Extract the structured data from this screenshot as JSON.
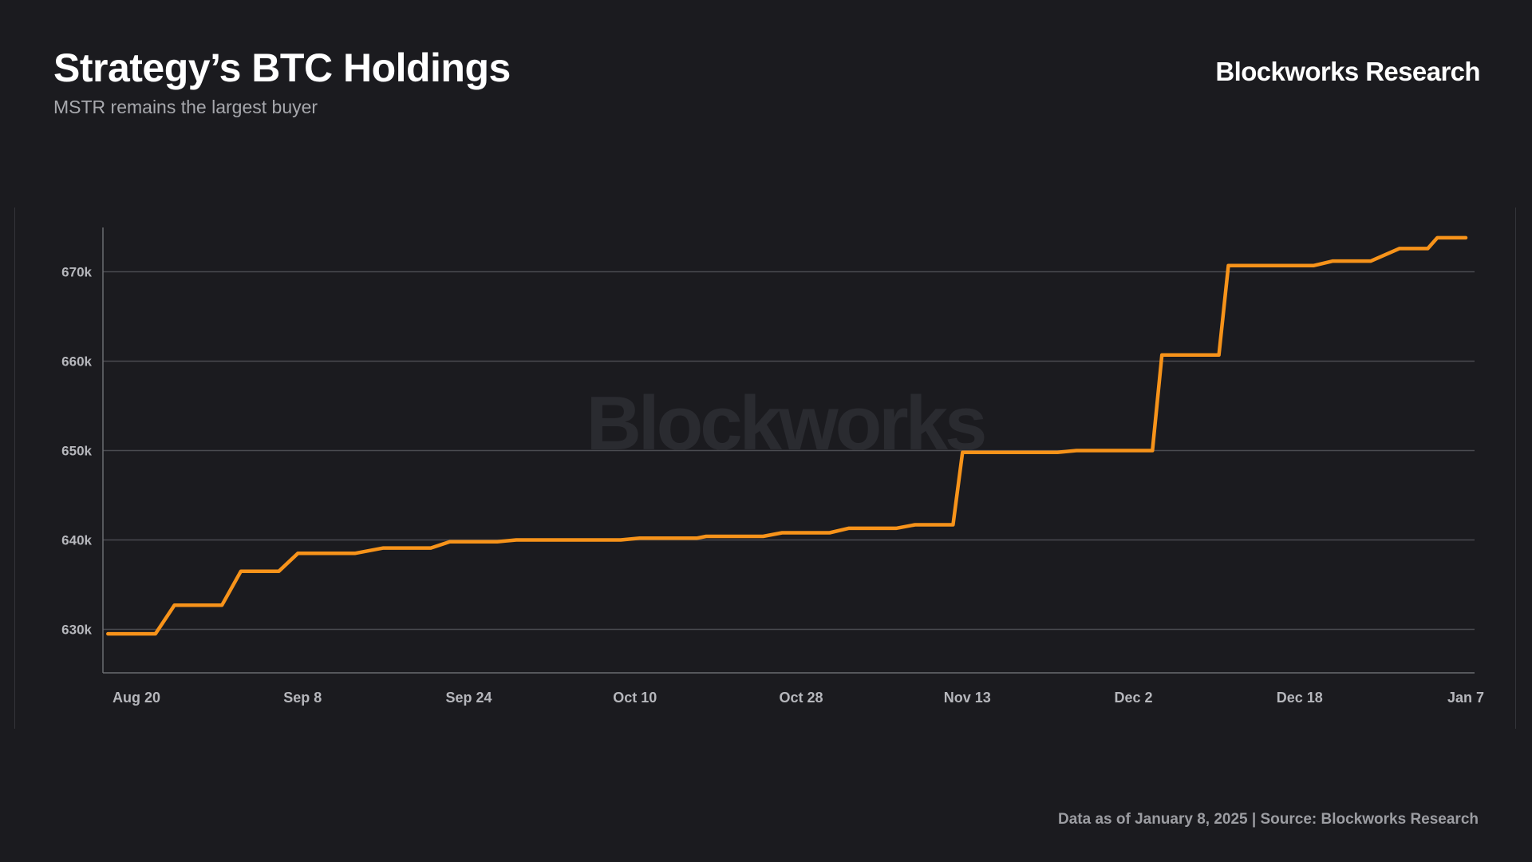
{
  "header": {
    "title": "Strategy’s BTC Holdings",
    "subtitle": "MSTR remains the largest buyer",
    "brand": "Blockworks Research"
  },
  "watermark": "Blockworks",
  "footer": {
    "source": "Data as of January 8, 2025 | Source: Blockworks Research"
  },
  "colors": {
    "background": "#1b1b1f",
    "line": "#f7931a",
    "grid": "#4a4b50",
    "tick_text": "#b6b7bc"
  },
  "chart_data": {
    "type": "line",
    "title": "Strategy’s BTC Holdings",
    "subtitle": "MSTR remains the largest buyer",
    "xlabel": "",
    "ylabel": "",
    "grid": true,
    "legend": "none",
    "x_ticks": [
      "Aug 20",
      "Sep 8",
      "Sep 24",
      "Oct 10",
      "Oct 28",
      "Nov 13",
      "Dec 2",
      "Dec 18",
      "Jan 7"
    ],
    "y_ticks": [
      "630k",
      "640k",
      "650k",
      "660k",
      "670k"
    ],
    "ylim": [
      625000,
      675000
    ],
    "xlim": [
      "2024-08-17",
      "2025-01-07"
    ],
    "series": [
      {
        "x": [
          "2024-08-17",
          "2024-08-22",
          "2024-08-24",
          "2024-08-29",
          "2024-08-31",
          "2024-09-04",
          "2024-09-06",
          "2024-09-11",
          "2024-09-12",
          "2024-09-15",
          "2024-09-20",
          "2024-09-22",
          "2024-09-27",
          "2024-09-29",
          "2024-10-02",
          "2024-10-05",
          "2024-10-08",
          "2024-10-10",
          "2024-10-12",
          "2024-10-18",
          "2024-10-19",
          "2024-10-25",
          "2024-10-27",
          "2024-11-01",
          "2024-11-03",
          "2024-11-08",
          "2024-11-10",
          "2024-11-14",
          "2024-11-15",
          "2024-11-25",
          "2024-11-27",
          "2024-12-02",
          "2024-12-05",
          "2024-12-06",
          "2024-12-12",
          "2024-12-13",
          "2024-12-22",
          "2024-12-24",
          "2024-12-28",
          "2024-12-31",
          "2025-01-03",
          "2025-01-04",
          "2025-01-07"
        ],
        "y": [
          629500,
          629500,
          632700,
          632700,
          636500,
          636500,
          638500,
          638500,
          638500,
          639100,
          639100,
          639800,
          639800,
          640000,
          640000,
          640000,
          640000,
          640000,
          640200,
          640200,
          640400,
          640400,
          640800,
          640800,
          641300,
          641300,
          641700,
          641700,
          649800,
          649800,
          650000,
          650000,
          650000,
          660700,
          660700,
          670700,
          670700,
          671200,
          671200,
          672600,
          672600,
          673800,
          673800
        ]
      }
    ]
  }
}
